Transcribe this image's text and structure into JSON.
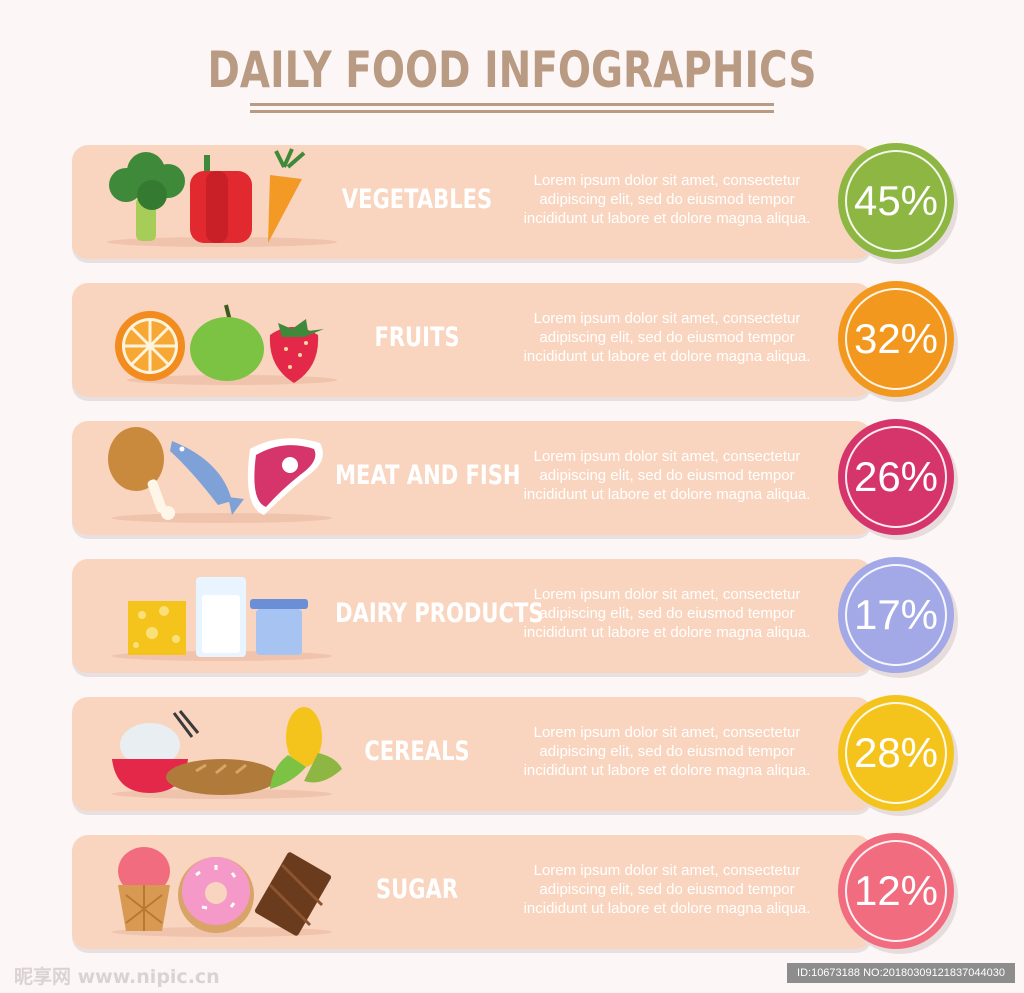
{
  "title": "DAILY FOOD INFOGRAPHICS",
  "colors": {
    "background": "#fdf6f7",
    "band": "#f9d5bf",
    "title": "#b99a82"
  },
  "rows": [
    {
      "label": "VEGETABLES",
      "percent": "45%",
      "color": "#8db643",
      "description": "Lorem ipsum dolor sit amet, consectetur adipiscing elit, sed do eiusmod tempor incididunt ut labore et dolore magna aliqua.",
      "icons": [
        "broccoli-icon",
        "pepper-icon",
        "carrot-icon"
      ]
    },
    {
      "label": "FRUITS",
      "percent": "32%",
      "color": "#f3981e",
      "description": "Lorem ipsum dolor sit amet, consectetur adipiscing elit, sed do eiusmod tempor incididunt ut labore et dolore magna aliqua.",
      "icons": [
        "orange-icon",
        "apple-icon",
        "strawberry-icon"
      ]
    },
    {
      "label": "MEAT AND FISH",
      "percent": "26%",
      "color": "#d6356b",
      "description": "Lorem ipsum dolor sit amet, consectetur adipiscing elit, sed do eiusmod tempor incididunt ut labore et dolore magna aliqua.",
      "icons": [
        "chicken-leg-icon",
        "fish-icon",
        "steak-icon"
      ]
    },
    {
      "label": "DAIRY PRODUCTS",
      "percent": "17%",
      "color": "#a3a8e6",
      "description": "Lorem ipsum dolor sit amet, consectetur adipiscing elit, sed do eiusmod tempor incididunt ut labore et dolore magna aliqua.",
      "icons": [
        "cheese-icon",
        "milk-glass-icon",
        "yogurt-icon"
      ]
    },
    {
      "label": "CEREALS",
      "percent": "28%",
      "color": "#f5c41c",
      "description": "Lorem ipsum dolor sit amet, consectetur adipiscing elit, sed do eiusmod tempor incididunt ut labore et dolore magna aliqua.",
      "icons": [
        "rice-bowl-icon",
        "bread-icon",
        "corn-icon"
      ]
    },
    {
      "label": "SUGAR",
      "percent": "12%",
      "color": "#f26c7f",
      "description": "Lorem ipsum dolor sit amet, consectetur adipiscing elit, sed do eiusmod tempor incididunt ut labore et dolore magna aliqua.",
      "icons": [
        "ice-cream-icon",
        "donut-icon",
        "chocolate-icon"
      ]
    }
  ],
  "watermark": {
    "left": "昵享网 www.nipic.cn",
    "right": "ID:10673188 NO:20180309121837044030"
  }
}
